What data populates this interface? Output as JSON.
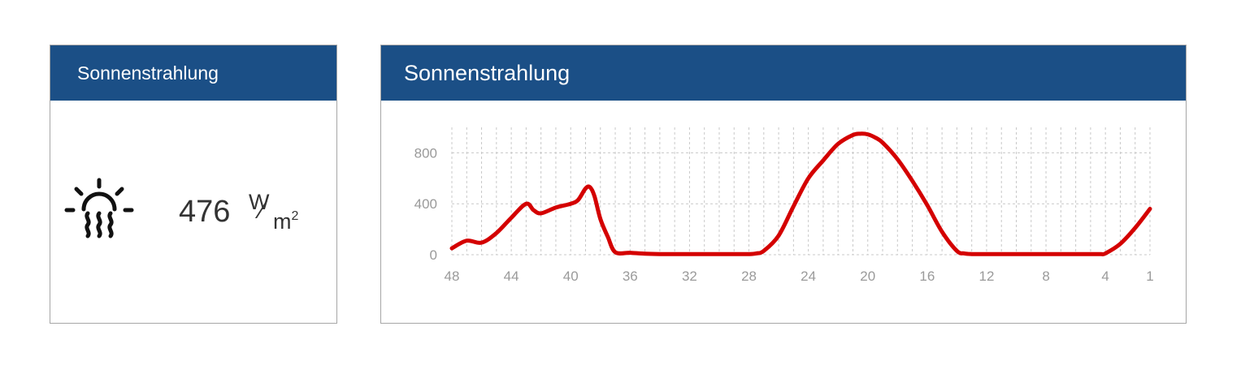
{
  "widget_value": {
    "title": "Sonnenstrahlung",
    "value": "476",
    "unit_numerator": "W",
    "unit_slash": "⁄",
    "unit_denominator": "m",
    "unit_exponent": "2",
    "icon": "sun-heat-icon"
  },
  "widget_chart": {
    "title": "Sonnenstrahlung"
  },
  "colors": {
    "header_bg": "#1b4f86",
    "header_text": "#ffffff",
    "series": "#d40000",
    "grid": "#c8c8c8",
    "tick_text": "#9a9a9a"
  },
  "chart_data": {
    "type": "line",
    "x_tick_labels": [
      "48",
      "44",
      "40",
      "36",
      "32",
      "28",
      "24",
      "20",
      "16",
      "12",
      "8",
      "4",
      "1"
    ],
    "y_tick_labels": [
      "0",
      "400",
      "800"
    ],
    "xlim": [
      48,
      1
    ],
    "ylim": [
      0,
      1000
    ],
    "grid": true,
    "series": [
      {
        "x": [
          48,
          47,
          46,
          45,
          44,
          43,
          42.5,
          42,
          41,
          40,
          39.5,
          39,
          38.7,
          38.4,
          38,
          37.5,
          37,
          36,
          35,
          34,
          33,
          32,
          31,
          30,
          29,
          28,
          27.5,
          27,
          26,
          25,
          24,
          23,
          22,
          21,
          20.5,
          20,
          19.5,
          19,
          18,
          17,
          16,
          15,
          14,
          13.5,
          13,
          12.5,
          12,
          11,
          10,
          9,
          8,
          7,
          6,
          5,
          4.3,
          4,
          3,
          2,
          1
        ],
        "y": [
          50,
          110,
          95,
          170,
          290,
          400,
          350,
          325,
          370,
          400,
          430,
          520,
          530,
          460,
          280,
          140,
          20,
          15,
          8,
          5,
          5,
          5,
          5,
          5,
          5,
          5,
          10,
          30,
          150,
          380,
          600,
          740,
          870,
          940,
          950,
          945,
          920,
          880,
          750,
          580,
          390,
          180,
          30,
          10,
          5,
          5,
          5,
          5,
          5,
          5,
          5,
          5,
          5,
          5,
          5,
          10,
          85,
          210,
          360
        ]
      }
    ]
  }
}
